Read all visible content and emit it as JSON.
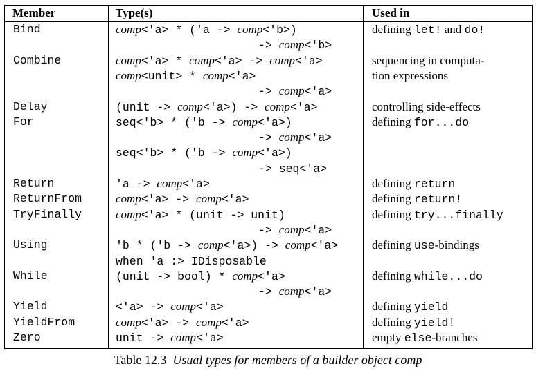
{
  "headers": {
    "member": "Member",
    "types": "Type(s)",
    "used": "Used in"
  },
  "rows": [
    {
      "member": "Bind",
      "types": [
        [
          {
            "t": "comp",
            "s": "it"
          },
          {
            "t": "<'a> * ('a -> ",
            "s": "mono"
          },
          {
            "t": "comp",
            "s": "it"
          },
          {
            "t": "<'b>)",
            "s": "mono"
          }
        ],
        [
          {
            "t": "-> ",
            "s": "mono"
          },
          {
            "t": "comp",
            "s": "it"
          },
          {
            "t": "<'b>",
            "s": "mono"
          }
        ]
      ],
      "indent": [
        false,
        true
      ],
      "used": [
        [
          {
            "t": "defining ",
            "s": "rm"
          },
          {
            "t": "let!",
            "s": "mono"
          },
          {
            "t": " and ",
            "s": "rm"
          },
          {
            "t": "do!",
            "s": "mono"
          }
        ]
      ]
    },
    {
      "member": "Combine",
      "types": [
        [
          {
            "t": "comp",
            "s": "it"
          },
          {
            "t": "<'a> * ",
            "s": "mono"
          },
          {
            "t": "comp",
            "s": "it"
          },
          {
            "t": "<'a> -> ",
            "s": "mono"
          },
          {
            "t": "comp",
            "s": "it"
          },
          {
            "t": "<'a>",
            "s": "mono"
          }
        ],
        [
          {
            "t": "comp",
            "s": "it"
          },
          {
            "t": "<unit> * ",
            "s": "mono"
          },
          {
            "t": "comp",
            "s": "it"
          },
          {
            "t": "<'a>",
            "s": "mono"
          }
        ],
        [
          {
            "t": "-> ",
            "s": "mono"
          },
          {
            "t": "comp",
            "s": "it"
          },
          {
            "t": "<'a>",
            "s": "mono"
          }
        ]
      ],
      "indent": [
        false,
        false,
        true
      ],
      "used": [
        [
          {
            "t": "sequencing in computa-",
            "s": "rm"
          }
        ],
        [
          {
            "t": "tion expressions",
            "s": "rm"
          }
        ]
      ]
    },
    {
      "member": "Delay",
      "types": [
        [
          {
            "t": "(unit -> ",
            "s": "mono"
          },
          {
            "t": "comp",
            "s": "it"
          },
          {
            "t": "<'a>) -> ",
            "s": "mono"
          },
          {
            "t": "comp",
            "s": "it"
          },
          {
            "t": "<'a>",
            "s": "mono"
          }
        ]
      ],
      "indent": [
        false
      ],
      "used": [
        [
          {
            "t": "controlling side-effects",
            "s": "rm"
          }
        ]
      ]
    },
    {
      "member": "For",
      "types": [
        [
          {
            "t": "seq<'b> * ('b -> ",
            "s": "mono"
          },
          {
            "t": "comp",
            "s": "it"
          },
          {
            "t": "<'a>)",
            "s": "mono"
          }
        ],
        [
          {
            "t": "-> ",
            "s": "mono"
          },
          {
            "t": "comp",
            "s": "it"
          },
          {
            "t": "<'a>",
            "s": "mono"
          }
        ],
        [
          {
            "t": "seq<'b> * ('b -> ",
            "s": "mono"
          },
          {
            "t": "comp",
            "s": "it"
          },
          {
            "t": "<'a>)",
            "s": "mono"
          }
        ],
        [
          {
            "t": "-> seq<'a>",
            "s": "mono"
          }
        ]
      ],
      "indent": [
        false,
        true,
        false,
        true
      ],
      "used": [
        [
          {
            "t": "defining ",
            "s": "rm"
          },
          {
            "t": "for...do",
            "s": "mono"
          }
        ]
      ]
    },
    {
      "member": "Return",
      "types": [
        [
          {
            "t": "'a -> ",
            "s": "mono"
          },
          {
            "t": "comp",
            "s": "it"
          },
          {
            "t": "<'a>",
            "s": "mono"
          }
        ]
      ],
      "indent": [
        false
      ],
      "used": [
        [
          {
            "t": "defining ",
            "s": "rm"
          },
          {
            "t": "return",
            "s": "mono"
          }
        ]
      ]
    },
    {
      "member": "ReturnFrom",
      "types": [
        [
          {
            "t": "comp",
            "s": "it"
          },
          {
            "t": "<'a> -> ",
            "s": "mono"
          },
          {
            "t": "comp",
            "s": "it"
          },
          {
            "t": "<'a>",
            "s": "mono"
          }
        ]
      ],
      "indent": [
        false
      ],
      "used": [
        [
          {
            "t": "defining ",
            "s": "rm"
          },
          {
            "t": "return!",
            "s": "mono"
          }
        ]
      ]
    },
    {
      "member": "TryFinally",
      "types": [
        [
          {
            "t": "comp",
            "s": "it"
          },
          {
            "t": "<'a> * (unit -> unit)",
            "s": "mono"
          }
        ],
        [
          {
            "t": "-> ",
            "s": "mono"
          },
          {
            "t": "comp",
            "s": "it"
          },
          {
            "t": "<'a>",
            "s": "mono"
          }
        ]
      ],
      "indent": [
        false,
        true
      ],
      "used": [
        [
          {
            "t": "defining ",
            "s": "rm"
          },
          {
            "t": "try...finally",
            "s": "mono"
          }
        ]
      ]
    },
    {
      "member": "Using",
      "types": [
        [
          {
            "t": "'b * ('b -> ",
            "s": "mono"
          },
          {
            "t": "comp",
            "s": "it"
          },
          {
            "t": "<'a>) -> ",
            "s": "mono"
          },
          {
            "t": "comp",
            "s": "it"
          },
          {
            "t": "<'a>",
            "s": "mono"
          }
        ],
        [
          {
            "t": "when 'a :> IDisposable",
            "s": "mono"
          }
        ]
      ],
      "indent": [
        false,
        false
      ],
      "used": [
        [
          {
            "t": "defining ",
            "s": "rm"
          },
          {
            "t": "use",
            "s": "mono"
          },
          {
            "t": "-bindings",
            "s": "rm"
          }
        ]
      ]
    },
    {
      "member": "While",
      "types": [
        [
          {
            "t": "(unit -> bool) * ",
            "s": "mono"
          },
          {
            "t": "comp",
            "s": "it"
          },
          {
            "t": "<'a>",
            "s": "mono"
          }
        ],
        [
          {
            "t": "-> ",
            "s": "mono"
          },
          {
            "t": "comp",
            "s": "it"
          },
          {
            "t": "<'a>",
            "s": "mono"
          }
        ]
      ],
      "indent": [
        false,
        true
      ],
      "used": [
        [
          {
            "t": "defining ",
            "s": "rm"
          },
          {
            "t": "while...do",
            "s": "mono"
          }
        ]
      ]
    },
    {
      "member": "Yield",
      "types": [
        [
          {
            "t": "<'a> -> ",
            "s": "mono"
          },
          {
            "t": "comp",
            "s": "it"
          },
          {
            "t": "<'a>",
            "s": "mono"
          }
        ]
      ],
      "indent": [
        false
      ],
      "used": [
        [
          {
            "t": "defining ",
            "s": "rm"
          },
          {
            "t": "yield",
            "s": "mono"
          }
        ]
      ]
    },
    {
      "member": "YieldFrom",
      "types": [
        [
          {
            "t": "comp",
            "s": "it"
          },
          {
            "t": "<'a> -> ",
            "s": "mono"
          },
          {
            "t": "comp",
            "s": "it"
          },
          {
            "t": "<'a>",
            "s": "mono"
          }
        ]
      ],
      "indent": [
        false
      ],
      "used": [
        [
          {
            "t": "defining ",
            "s": "rm"
          },
          {
            "t": "yield!",
            "s": "mono"
          }
        ]
      ]
    },
    {
      "member": "Zero",
      "types": [
        [
          {
            "t": "unit -> ",
            "s": "mono"
          },
          {
            "t": "comp",
            "s": "it"
          },
          {
            "t": "<'a>",
            "s": "mono"
          }
        ]
      ],
      "indent": [
        false
      ],
      "used": [
        [
          {
            "t": "empty ",
            "s": "rm"
          },
          {
            "t": "else",
            "s": "mono"
          },
          {
            "t": "-branches",
            "s": "rm"
          }
        ]
      ]
    }
  ],
  "caption": {
    "label": "Table 12.3",
    "text": "Usual types for members of a builder object comp"
  }
}
